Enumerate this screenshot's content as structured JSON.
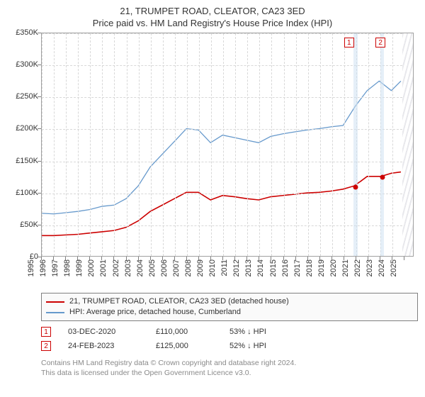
{
  "title": "21, TRUMPET ROAD, CLEATOR, CA23 3ED",
  "subtitle": "Price paid vs. HM Land Registry's House Price Index (HPI)",
  "chart": {
    "type": "line",
    "ylim": [
      0,
      350000
    ],
    "ytick_step": 50000,
    "yticks": [
      "£0",
      "£50K",
      "£100K",
      "£150K",
      "£200K",
      "£250K",
      "£300K",
      "£350K"
    ],
    "xlim": [
      1995,
      2025.8
    ],
    "xticks": [
      1995,
      1996,
      1997,
      1998,
      1999,
      2000,
      2001,
      2002,
      2003,
      2004,
      2005,
      2006,
      2007,
      2008,
      2009,
      2010,
      2011,
      2012,
      2013,
      2014,
      2015,
      2016,
      2017,
      2018,
      2019,
      2020,
      2021,
      2022,
      2023,
      2024,
      2025
    ],
    "background_color": "#ffffff",
    "grid_color": "#d8d8d8",
    "band_fill": "#cfe2f3",
    "hatch_from_x": 2024.8,
    "series": {
      "hpi": {
        "label": "HPI: Average price, detached house, Cumberland",
        "color": "#6699cc",
        "width": 1.3,
        "data": [
          [
            1995,
            67000
          ],
          [
            1996,
            66000
          ],
          [
            1997,
            68000
          ],
          [
            1998,
            70000
          ],
          [
            1999,
            73000
          ],
          [
            2000,
            78000
          ],
          [
            2001,
            80000
          ],
          [
            2002,
            90000
          ],
          [
            2003,
            110000
          ],
          [
            2004,
            140000
          ],
          [
            2005,
            160000
          ],
          [
            2006,
            180000
          ],
          [
            2007,
            200000
          ],
          [
            2008,
            198000
          ],
          [
            2009,
            178000
          ],
          [
            2010,
            190000
          ],
          [
            2011,
            186000
          ],
          [
            2012,
            182000
          ],
          [
            2013,
            178000
          ],
          [
            2014,
            188000
          ],
          [
            2015,
            192000
          ],
          [
            2016,
            195000
          ],
          [
            2017,
            198000
          ],
          [
            2018,
            200000
          ],
          [
            2019,
            203000
          ],
          [
            2020,
            205000
          ],
          [
            2021,
            235000
          ],
          [
            2022,
            260000
          ],
          [
            2023,
            275000
          ],
          [
            2024,
            260000
          ],
          [
            2024.8,
            275000
          ]
        ]
      },
      "price": {
        "label": "21, TRUMPET ROAD, CLEATOR, CA23 3ED (detached house)",
        "color": "#cc0000",
        "width": 1.6,
        "data": [
          [
            1995,
            32000
          ],
          [
            1996,
            32000
          ],
          [
            1997,
            33000
          ],
          [
            1998,
            34000
          ],
          [
            1999,
            36000
          ],
          [
            2000,
            38000
          ],
          [
            2001,
            40000
          ],
          [
            2002,
            45000
          ],
          [
            2003,
            55000
          ],
          [
            2004,
            70000
          ],
          [
            2005,
            80000
          ],
          [
            2006,
            90000
          ],
          [
            2007,
            100000
          ],
          [
            2008,
            100000
          ],
          [
            2009,
            88000
          ],
          [
            2010,
            95000
          ],
          [
            2011,
            93000
          ],
          [
            2012,
            90000
          ],
          [
            2013,
            88000
          ],
          [
            2014,
            93000
          ],
          [
            2015,
            95000
          ],
          [
            2016,
            97000
          ],
          [
            2017,
            99000
          ],
          [
            2018,
            100000
          ],
          [
            2019,
            102000
          ],
          [
            2020,
            105000
          ],
          [
            2020.9,
            110000
          ],
          [
            2021.5,
            118000
          ],
          [
            2022,
            125000
          ],
          [
            2023.15,
            125000
          ],
          [
            2024,
            130000
          ],
          [
            2024.8,
            132000
          ]
        ]
      }
    },
    "markers": [
      {
        "n": "1",
        "x": 2020.92,
        "y": 110000,
        "label_x": 2020.4,
        "label_y_top": 6
      },
      {
        "n": "2",
        "x": 2023.15,
        "y": 125000,
        "label_x": 2023.0,
        "label_y_top": 6
      }
    ],
    "bands": [
      {
        "from": 2020.75,
        "to": 2021.1
      },
      {
        "from": 2023.0,
        "to": 2023.3
      }
    ]
  },
  "legend": {
    "items": [
      {
        "color": "#cc0000",
        "label": "21, TRUMPET ROAD, CLEATOR, CA23 3ED (detached house)"
      },
      {
        "color": "#6699cc",
        "label": "HPI: Average price, detached house, Cumberland"
      }
    ]
  },
  "events": [
    {
      "n": "1",
      "date": "03-DEC-2020",
      "price": "£110,000",
      "diff": "53% ↓ HPI"
    },
    {
      "n": "2",
      "date": "24-FEB-2023",
      "price": "£125,000",
      "diff": "52% ↓ HPI"
    }
  ],
  "attribution": {
    "line1": "Contains HM Land Registry data © Crown copyright and database right 2024.",
    "line2": "This data is licensed under the Open Government Licence v3.0."
  }
}
